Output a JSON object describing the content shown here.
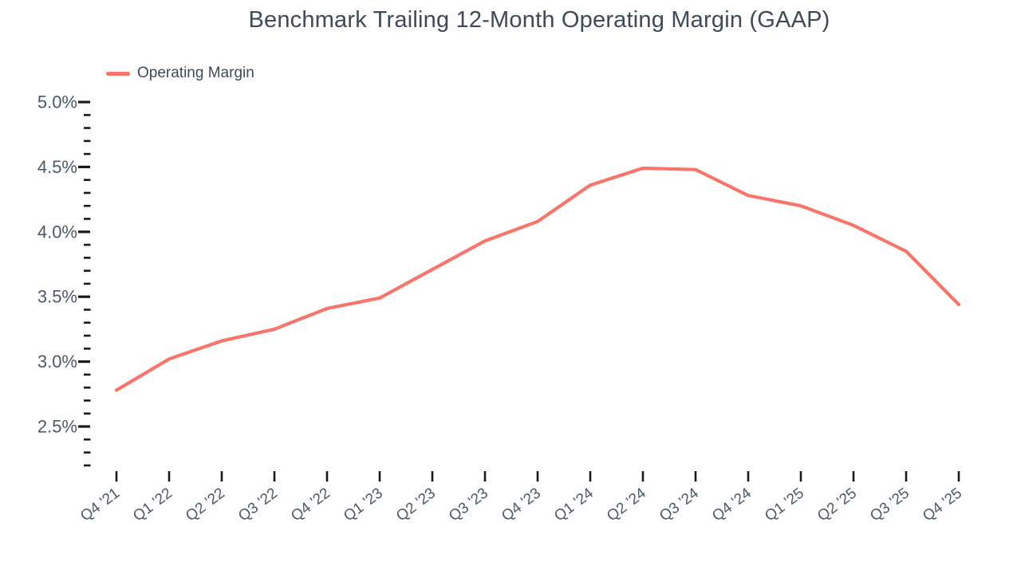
{
  "colors": {
    "line": "#F8756C",
    "title_text": "#3E4A58",
    "axis_label_text": "#4D5968",
    "tick_mark": "#1A1A1A",
    "background": "#FFFFFF"
  },
  "chart_data": {
    "type": "line",
    "title": "Benchmark Trailing 12-Month Operating Margin (GAAP)",
    "xlabel": "",
    "ylabel": "",
    "grid": false,
    "legend": {
      "position": "top-left",
      "entries": [
        "Operating Margin"
      ]
    },
    "categories": [
      "Q4 '21",
      "Q1 '22",
      "Q2 '22",
      "Q3 '22",
      "Q4 '22",
      "Q1 '23",
      "Q2 '23",
      "Q3 '23",
      "Q4 '23",
      "Q1 '24",
      "Q2 '24",
      "Q3 '24",
      "Q4 '24",
      "Q1 '25",
      "Q2 '25",
      "Q3 '25",
      "Q4 '25"
    ],
    "series": [
      {
        "name": "Operating Margin",
        "unit": "%",
        "values": [
          2.78,
          3.02,
          3.16,
          3.25,
          3.41,
          3.49,
          3.71,
          3.93,
          4.08,
          4.36,
          4.49,
          4.48,
          4.28,
          4.2,
          4.05,
          3.85,
          3.44
        ]
      }
    ],
    "y_axis": {
      "min": 2.2,
      "max": 5.0,
      "major_ticks": [
        5.0,
        4.5,
        4.0,
        3.5,
        3.0,
        2.5
      ],
      "major_tick_labels": [
        "5.0%",
        "4.5%",
        "4.0%",
        "3.5%",
        "3.0%",
        "2.5%"
      ],
      "minor_tick_step": 0.1,
      "format": "percent"
    }
  }
}
